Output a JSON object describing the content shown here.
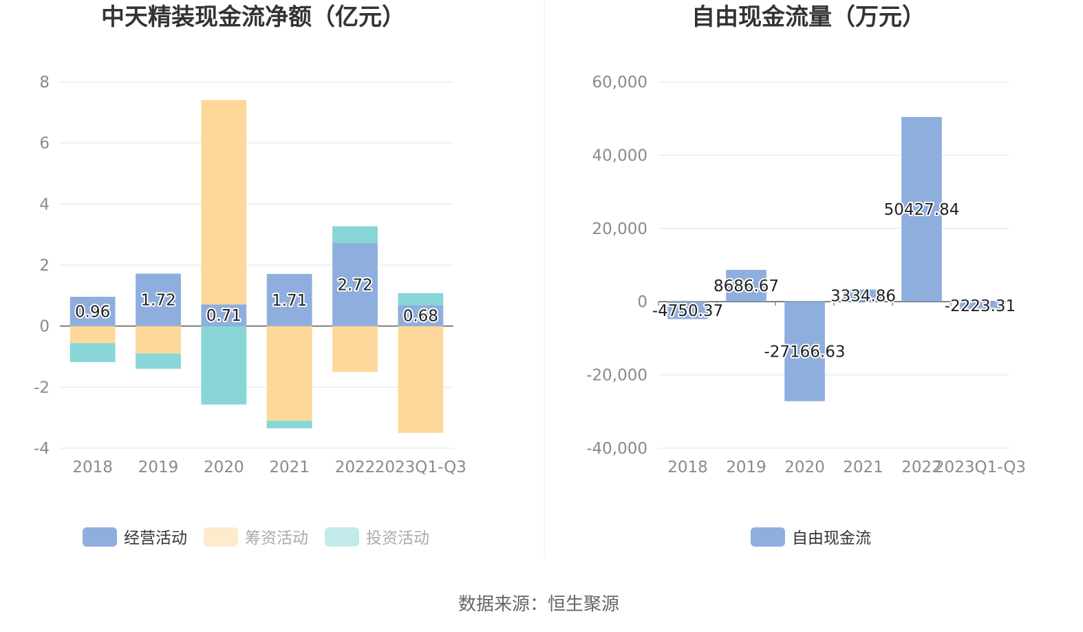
{
  "charts": [
    {
      "title": "中天精装现金流净额（亿元）",
      "chart_data": {
        "type": "bar",
        "stacked": true,
        "categories": [
          "2018",
          "2019",
          "2020",
          "2021",
          "2022",
          "2023Q1-Q3"
        ],
        "ylim": [
          -4,
          8
        ],
        "yticks": [
          "8",
          "6",
          "4",
          "2",
          "0",
          "-2",
          "-4"
        ],
        "ytick_values": [
          8,
          6,
          4,
          2,
          0,
          -2,
          -4
        ],
        "series": [
          {
            "name": "经营活动",
            "color": "#8eaedd",
            "values": [
              0.96,
              1.72,
              0.71,
              1.71,
              2.72,
              0.68
            ],
            "labels": [
              "0.96",
              "1.72",
              "0.71",
              "1.71",
              "2.72",
              "0.68"
            ]
          },
          {
            "name": "筹资活动",
            "color": "#fdd89a",
            "values": [
              -0.56,
              -0.9,
              6.7,
              -3.1,
              -1.5,
              -3.5
            ]
          },
          {
            "name": "投资活动",
            "color": "#88d6d8",
            "values": [
              -0.62,
              -0.5,
              -2.57,
              -0.25,
              0.55,
              0.4
            ]
          }
        ],
        "legend": {
          "position": "bottom",
          "items": [
            "经营活动",
            "筹资活动",
            "投资活动"
          ],
          "active": [
            true,
            false,
            false
          ]
        },
        "grid": true
      }
    },
    {
      "title": "自由现金流量（万元）",
      "chart_data": {
        "type": "bar",
        "categories": [
          "2018",
          "2019",
          "2020",
          "2021",
          "2022",
          "2023Q1-Q3"
        ],
        "ylim": [
          -40000,
          60000
        ],
        "yticks": [
          "60,000",
          "40,000",
          "20,000",
          "0",
          "-20,000",
          "-40,000"
        ],
        "ytick_values": [
          60000,
          40000,
          20000,
          0,
          -20000,
          -40000
        ],
        "series": [
          {
            "name": "自由现金流",
            "color": "#8eaedd",
            "values": [
              -4750.37,
              8686.67,
              -27166.63,
              3334.86,
              50427.84,
              -2223.31
            ],
            "labels": [
              "-4750.37",
              "8686.67",
              "-27166.63",
              "3334.86",
              "50427.84",
              "-2223.31"
            ]
          }
        ],
        "legend": {
          "position": "bottom",
          "items": [
            "自由现金流"
          ],
          "active": [
            true
          ]
        },
        "grid": true
      }
    }
  ],
  "source": "数据来源：恒生聚源",
  "colors": {
    "axis_text": "#8a8a8a",
    "gridline": "#dde3ee",
    "legend_inactive_text": "#aaaaaa",
    "legend_active_text": "#333333"
  }
}
